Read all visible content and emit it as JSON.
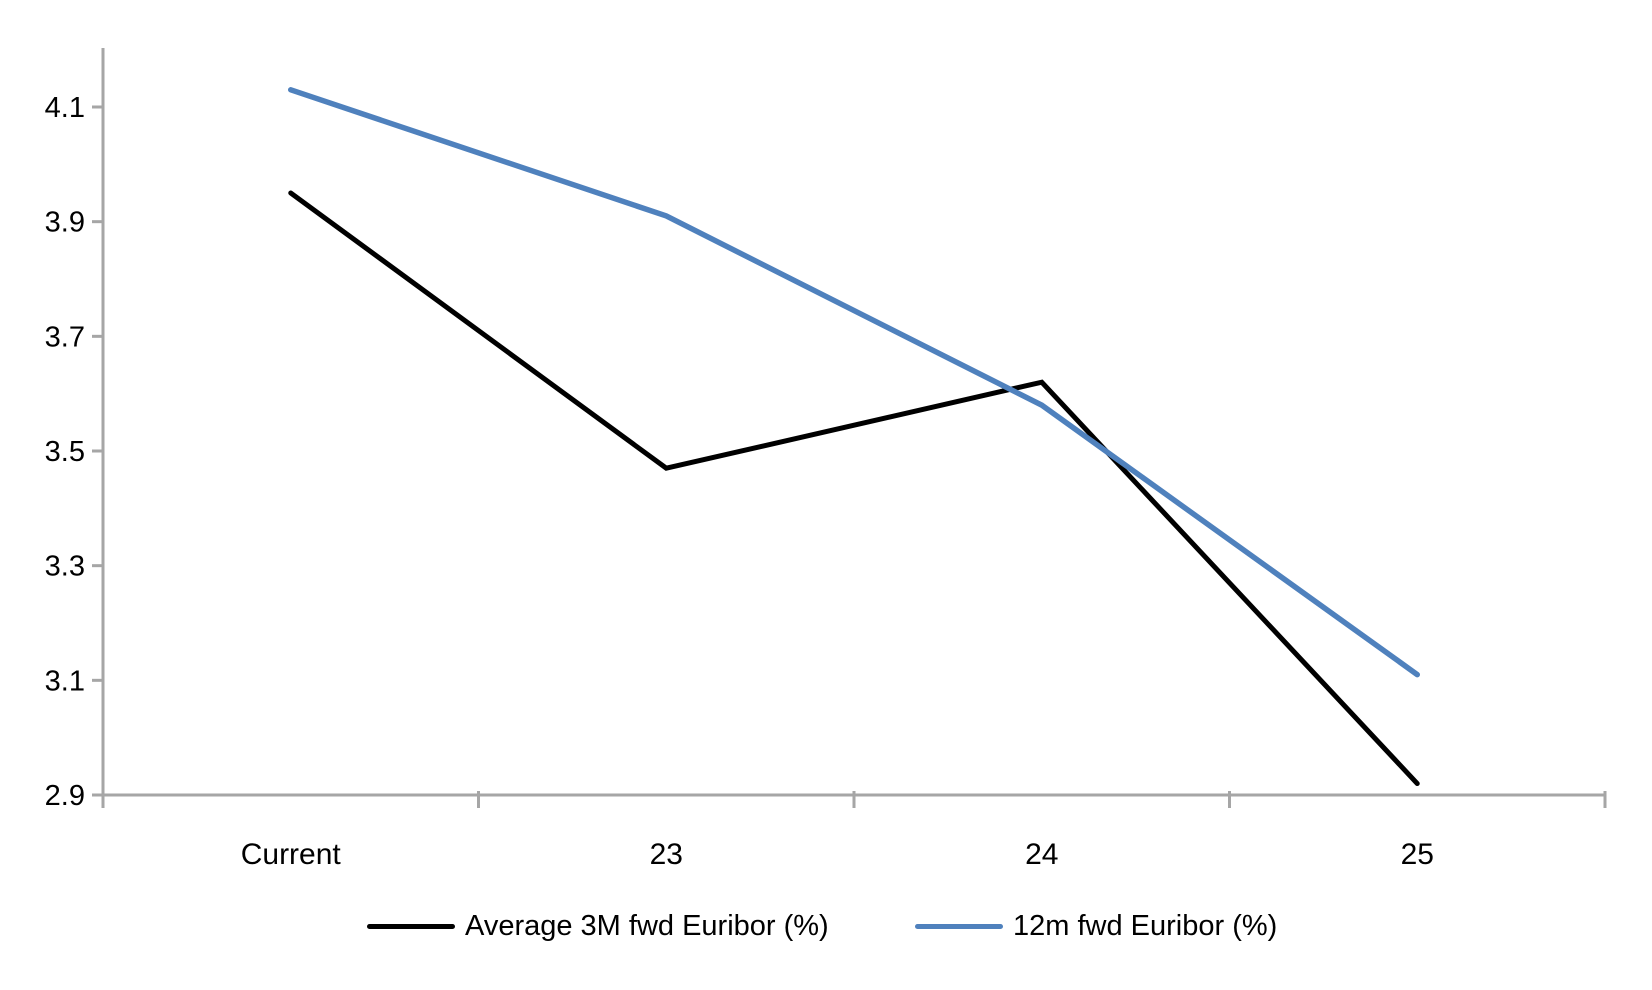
{
  "chart_data": {
    "type": "line",
    "categories": [
      "Current",
      "23",
      "24",
      "25"
    ],
    "series": [
      {
        "name": "Average 3M fwd Euribor (%)",
        "color": "#000000",
        "stroke_width": 5,
        "values": [
          3.95,
          3.47,
          3.62,
          2.92
        ]
      },
      {
        "name": "12m fwd Euribor (%)",
        "color": "#4F81BD",
        "stroke_width": 5.5,
        "values": [
          4.13,
          3.91,
          3.58,
          3.11
        ]
      }
    ],
    "title": "",
    "xlabel": "",
    "ylabel": "",
    "ylim": [
      2.9,
      4.2
    ],
    "y_ticks": [
      4.1,
      3.9,
      3.7,
      3.5,
      3.3,
      3.1,
      2.9
    ],
    "y_tick_labels": [
      "4.1",
      "3.9",
      "3.7",
      "3.5",
      "3.3",
      "3.1",
      "2.9"
    ],
    "grid": "off",
    "legend_position": "bottom",
    "axis_color": "#A6A6A6",
    "text_color": "#000000"
  }
}
